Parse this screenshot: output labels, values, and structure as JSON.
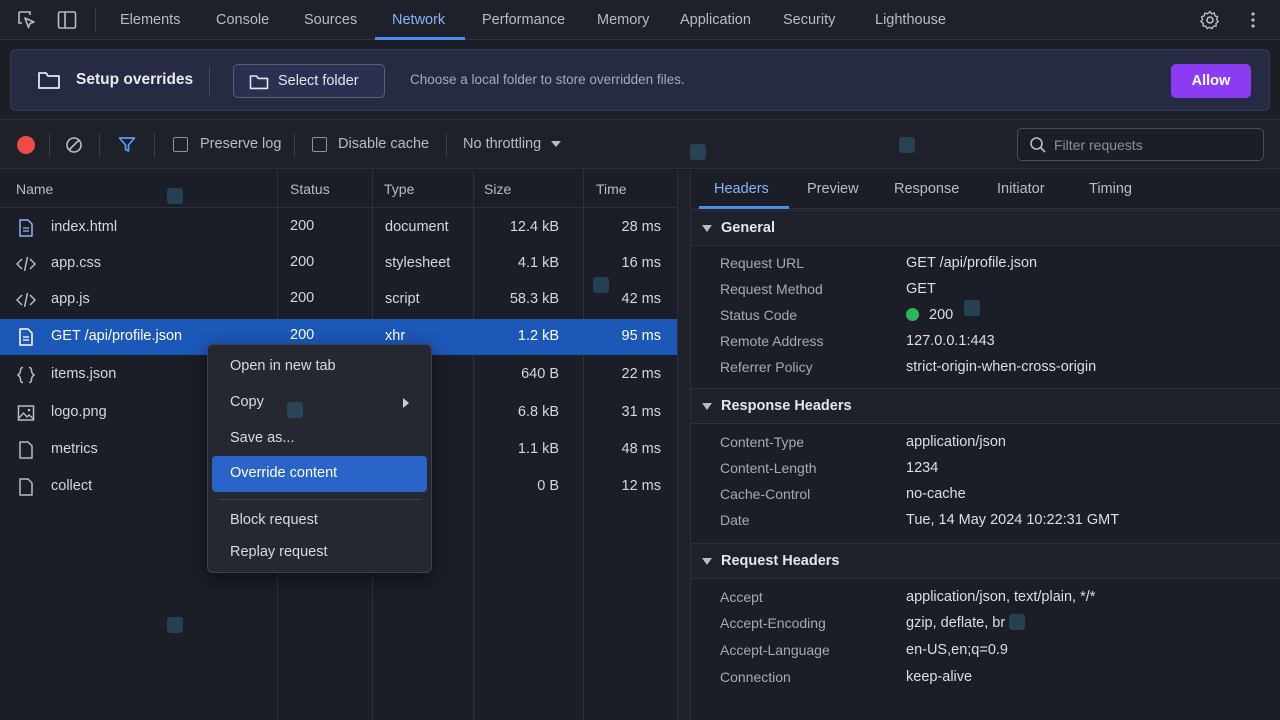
{
  "topbar": {
    "tabs": [
      {
        "label": "Elements"
      },
      {
        "label": "Console"
      },
      {
        "label": "Sources"
      },
      {
        "label": "Network"
      },
      {
        "label": "Performance"
      },
      {
        "label": "Memory"
      },
      {
        "label": "Application"
      },
      {
        "label": "Security"
      },
      {
        "label": "Lighthouse"
      }
    ],
    "active_tab": "Network",
    "icons": [
      "inspect-element-icon",
      "device-toolbar-icon",
      "settings-gear-icon",
      "more-vertical-icon"
    ]
  },
  "banner": {
    "title": "Setup overrides",
    "select_folder_label": "Select folder",
    "description": "Choose a local folder to store overridden files.",
    "allow_label": "Allow",
    "accent_color": "#8b3cf2"
  },
  "toolbar": {
    "preserve_log": "Preserve log",
    "disable_cache": "Disable cache",
    "throttling": "No throttling",
    "filter_placeholder": "Filter requests",
    "record_color": "#ee4b45"
  },
  "table": {
    "headers": {
      "name": "Name",
      "status": "Status",
      "type": "Type",
      "size": "Size",
      "time": "Time"
    },
    "rows": [
      {
        "name": "index.html",
        "status": "200",
        "type": "document",
        "size": "12.4 kB",
        "time": "28 ms",
        "icon": "document-file-icon"
      },
      {
        "name": "app.css",
        "status": "200",
        "type": "stylesheet",
        "size": "4.1 kB",
        "time": "16 ms",
        "icon": "code-file-icon"
      },
      {
        "name": "app.js",
        "status": "200",
        "type": "script",
        "size": "58.3 kB",
        "time": "42 ms",
        "icon": "code-file-icon"
      },
      {
        "name": "GET /api/profile.json",
        "status": "200",
        "type": "xhr",
        "size": "1.2 kB",
        "time": "95 ms",
        "icon": "document-file-icon",
        "selected": true
      },
      {
        "name": "items.json",
        "status": "",
        "type": "",
        "size": "640 B",
        "time": "22 ms",
        "icon": "json-braces-icon"
      },
      {
        "name": "logo.png",
        "status": "",
        "type": "",
        "size": "6.8 kB",
        "time": "31 ms",
        "icon": "image-file-icon"
      },
      {
        "name": "metrics",
        "status": "",
        "type": "",
        "size": "1.1 kB",
        "time": "48 ms",
        "icon": "blank-file-icon"
      },
      {
        "name": "collect",
        "status": "",
        "type": "",
        "size": "0 B",
        "time": "12 ms",
        "icon": "blank-file-icon"
      }
    ]
  },
  "context_menu": {
    "items": [
      {
        "label": "Open in new tab"
      },
      {
        "label": "Copy",
        "submenu": true
      },
      {
        "label": "Save as..."
      },
      {
        "label": "Override content",
        "highlighted": true
      },
      {
        "label": "Block request"
      },
      {
        "label": "Replay request"
      }
    ]
  },
  "details": {
    "tabs": [
      {
        "label": "Headers"
      },
      {
        "label": "Preview"
      },
      {
        "label": "Response"
      },
      {
        "label": "Initiator"
      },
      {
        "label": "Timing"
      }
    ],
    "active_tab": "Headers",
    "general": {
      "title": "General",
      "rows": [
        {
          "k": "Request URL",
          "v": "GET /api/profile.json"
        },
        {
          "k": "Request Method",
          "v": "GET"
        },
        {
          "k": "Status Code",
          "v": "200"
        },
        {
          "k": "Remote Address",
          "v": "127.0.0.1:443"
        },
        {
          "k": "Referrer Policy",
          "v": "strict-origin-when-cross-origin"
        }
      ]
    },
    "response_headers": {
      "title": "Response Headers",
      "rows": [
        {
          "k": "Content-Type",
          "v": "application/json"
        },
        {
          "k": "Content-Length",
          "v": "1234"
        },
        {
          "k": "Cache-Control",
          "v": "no-cache"
        },
        {
          "k": "Date",
          "v": "Tue, 14 May 2024 10:22:31 GMT"
        }
      ]
    },
    "request_headers": {
      "title": "Request Headers",
      "rows": [
        {
          "k": "Accept",
          "v": "application/json, text/plain, */*"
        },
        {
          "k": "Accept-Encoding",
          "v": "gzip, deflate, br"
        },
        {
          "k": "Accept-Language",
          "v": "en-US,en;q=0.9"
        },
        {
          "k": "Connection",
          "v": "keep-alive"
        }
      ]
    },
    "status_color": "#2bb55a"
  }
}
